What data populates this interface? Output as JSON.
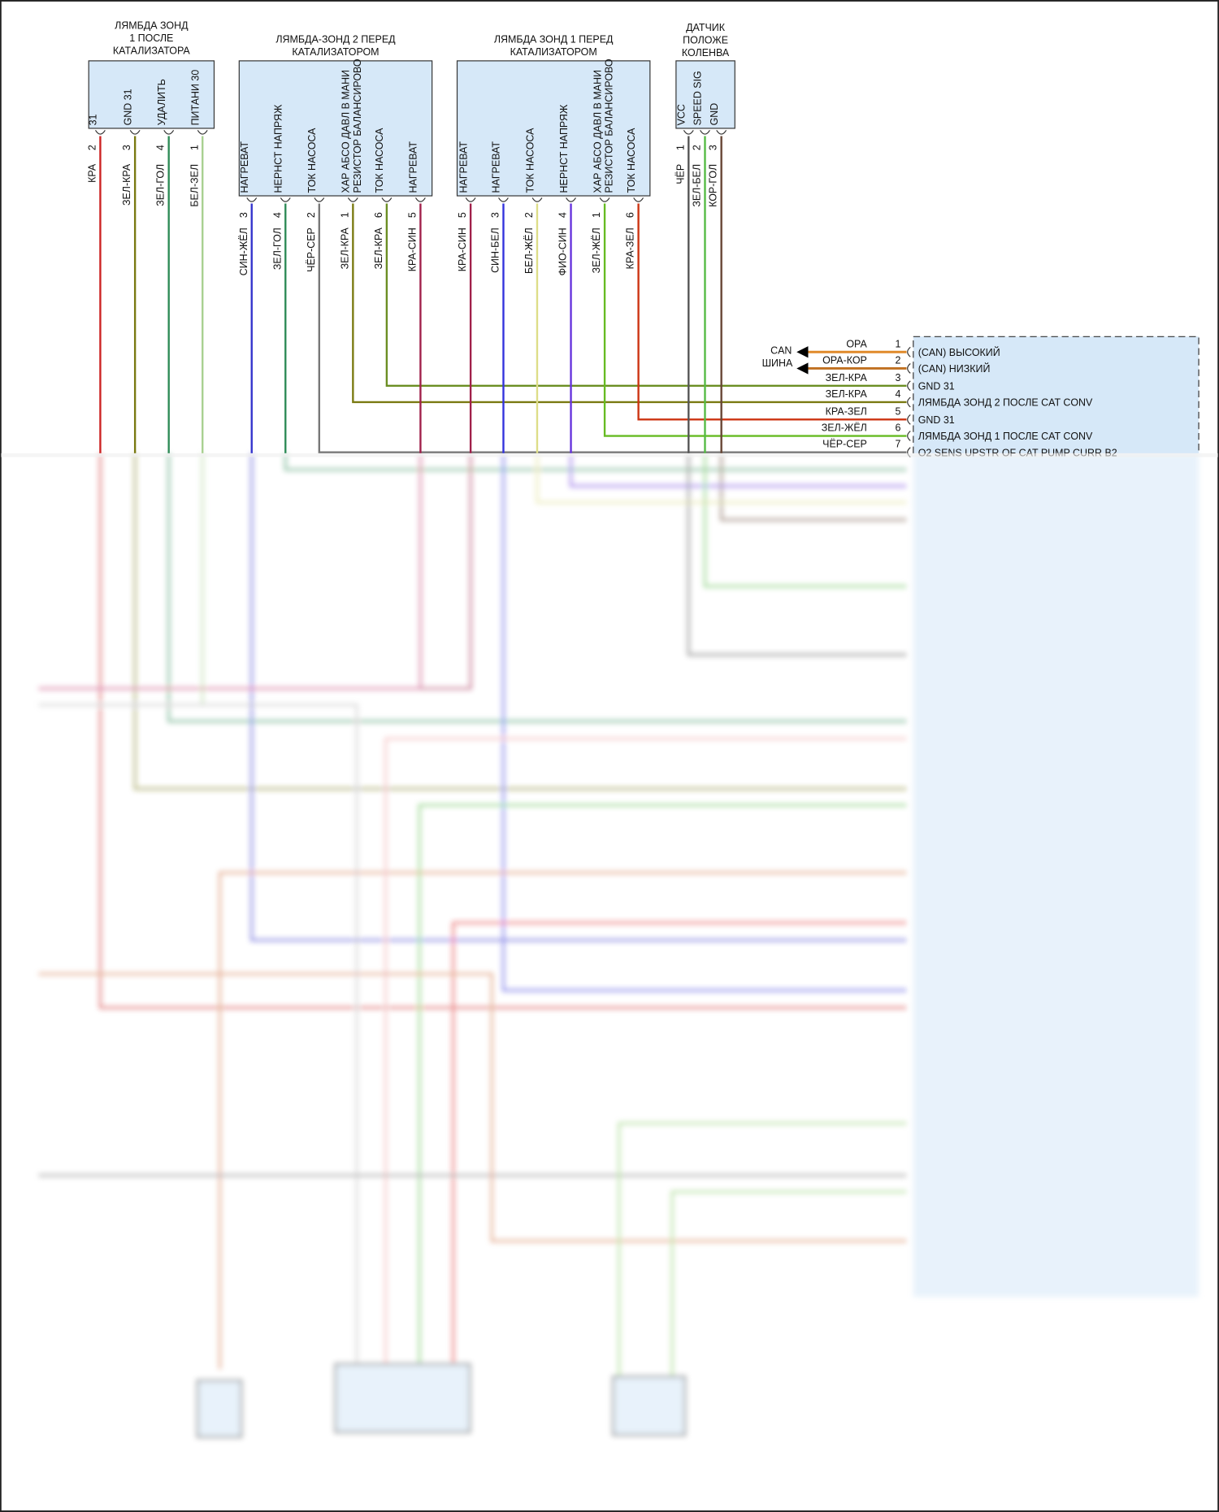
{
  "connectors": [
    {
      "title": [
        "ЛЯМБДА ЗОНД",
        "1 ПОСЛЕ",
        "КАТАЛИЗАТОРА"
      ],
      "pins": [
        {
          "num": "2",
          "label": "31",
          "wire": "КРА",
          "color": "#cc2222"
        },
        {
          "num": "3",
          "label": "GND 31",
          "wire": "ЗЕЛ-КРА",
          "color": "#7a7a12"
        },
        {
          "num": "4",
          "label": "УДАЛИТЬ",
          "wire": "ЗЕЛ-ГОЛ",
          "color": "#2e8b57"
        },
        {
          "num": "1",
          "label": "ПИТАНИ 30",
          "wire": "БЕЛ-ЗЕЛ",
          "color": "#a8d090"
        }
      ]
    },
    {
      "title": [
        "ЛЯМБДА-ЗОНД 2 ПЕРЕД",
        "КАТАЛИЗАТОРОМ"
      ],
      "pins": [
        {
          "num": "3",
          "label": "НАГРЕВАТ",
          "wire": "СИН-ЖЁЛ",
          "color": "#3333cc"
        },
        {
          "num": "4",
          "label": "НЕРНСТ НАПРЯЖ",
          "wire": "ЗЕЛ-ГОЛ",
          "color": "#2e8b57"
        },
        {
          "num": "2",
          "label": "ТОК НАСОСА",
          "wire": "ЧЁР-СЕР",
          "color": "#777777"
        },
        {
          "num": "1",
          "label": "ХАР АБСО ДАВЛ В МАНИ",
          "label2": "РЕЗИСТОР БАЛАНСИРОВО",
          "wire": "ЗЕЛ-КРА",
          "color": "#7a7a12"
        },
        {
          "num": "6",
          "label": "ТОК НАСОСА",
          "wire": "ЗЕЛ-КРА",
          "color": "#6b8e23"
        },
        {
          "num": "5",
          "label": "НАГРЕВАТ",
          "wire": "КРА-СИН",
          "color": "#a0204a"
        }
      ]
    },
    {
      "title": [
        "ЛЯМБДА ЗОНД 1 ПЕРЕД",
        "КАТАЛИЗАТОРОМ"
      ],
      "pins": [
        {
          "num": "5",
          "label": "НАГРЕВАТ",
          "wire": "КРА-СИН",
          "color": "#a0204a"
        },
        {
          "num": "3",
          "label": "НАГРЕВАТ",
          "wire": "СИН-БЕЛ",
          "color": "#3333dd"
        },
        {
          "num": "2",
          "label": "ТОК НАСОСА",
          "wire": "БЕЛ-ЖЁЛ",
          "color": "#dddd88"
        },
        {
          "num": "4",
          "label": "НЕРНСТ НАПРЯЖ",
          "wire": "ФИО-СИН",
          "color": "#6633dd"
        },
        {
          "num": "1",
          "label": "ХАР АБСО ДАВЛ В МАНИ",
          "label2": "РЕЗИСТОР БАЛАНСИРОВО",
          "wire": "ЗЕЛ-ЖЁЛ",
          "color": "#66bb22"
        },
        {
          "num": "6",
          "label": "ТОК НАСОСА",
          "wire": "КРА-ЗЕЛ",
          "color": "#cc3311"
        }
      ]
    },
    {
      "title": [
        "ДАТЧИК",
        "ПОЛОЖЕ",
        "КОЛЕНВА"
      ],
      "pins": [
        {
          "num": "1",
          "label": "VCC",
          "wire": "ЧЁР",
          "color": "#555555"
        },
        {
          "num": "2",
          "label": "SPEED SIG",
          "wire": "ЗЕЛ-БЕЛ",
          "color": "#55bb44"
        },
        {
          "num": "3",
          "label": "GND",
          "wire": "КОР-ГОЛ",
          "color": "#664433"
        }
      ]
    }
  ],
  "can_bus": {
    "label": [
      "CAN",
      "ШИНА"
    ]
  },
  "ecu": {
    "pins": [
      {
        "num": "1",
        "wire": "ОРА",
        "label": "(CAN) ВЫСОКИЙ",
        "color": "#e08a2a"
      },
      {
        "num": "2",
        "wire": "ОРА-КОР",
        "label": "(CAN) НИЗКИЙ",
        "color": "#c07020"
      },
      {
        "num": "3",
        "wire": "ЗЕЛ-КРА",
        "label": "GND 31",
        "color": "#6b8e23"
      },
      {
        "num": "4",
        "wire": "ЗЕЛ-КРА",
        "label": "ЛЯМБДА ЗОНД 2 ПОСЛЕ CAT CONV",
        "color": "#7a7a12"
      },
      {
        "num": "5",
        "wire": "КРА-ЗЕЛ",
        "label": "GND 31",
        "color": "#cc3311"
      },
      {
        "num": "6",
        "wire": "ЗЕЛ-ЖЁЛ",
        "label": "ЛЯМБДА ЗОНД 1 ПОСЛЕ CAT CONV",
        "color": "#66bb22"
      },
      {
        "num": "7",
        "wire": "ЧЁР-СЕР",
        "label": "O2 SENS UPSTR OF CAT PUMP CURR B2",
        "color": "#777777"
      }
    ]
  }
}
